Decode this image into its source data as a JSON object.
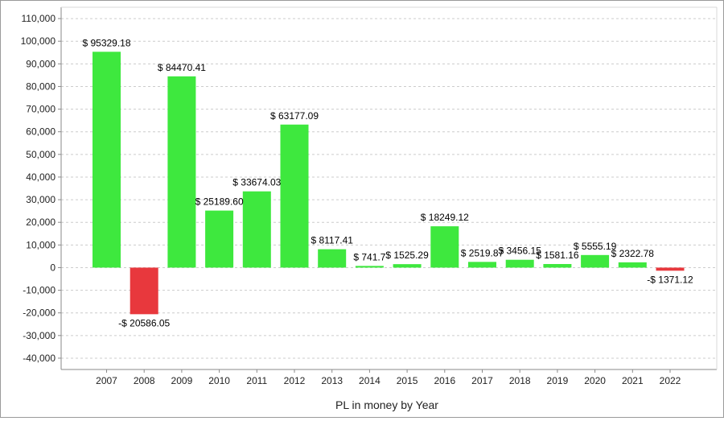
{
  "chart_data": {
    "type": "bar",
    "xlabel": "PL in money by Year",
    "ylabel": "",
    "ylim": [
      -45000,
      115000
    ],
    "yticks": [
      -40000,
      -30000,
      -20000,
      -10000,
      0,
      10000,
      20000,
      30000,
      40000,
      50000,
      60000,
      70000,
      80000,
      90000,
      100000,
      110000
    ],
    "ytick_labels": [
      "-40,000",
      "-30,000",
      "-20,000",
      "-10,000",
      "0",
      "10,000",
      "20,000",
      "30,000",
      "40,000",
      "50,000",
      "60,000",
      "70,000",
      "80,000",
      "90,000",
      "100,000",
      "110,000"
    ],
    "grid": "horizontal dashed",
    "categories": [
      "2007",
      "2008",
      "2009",
      "2010",
      "2011",
      "2012",
      "2013",
      "2014",
      "2015",
      "2016",
      "2017",
      "2018",
      "2019",
      "2020",
      "2021",
      "2022"
    ],
    "values": [
      95329.18,
      -20586.05,
      84470.41,
      25189.6,
      33674.03,
      63177.09,
      8117.41,
      741.7,
      1525.29,
      18249.12,
      2519.87,
      3456.15,
      1581.16,
      5555.19,
      2322.78,
      -1371.12
    ],
    "data_labels": [
      "$ 95329.18",
      "-$ 20586.05",
      "$ 84470.41",
      "$ 25189.60",
      "$ 33674.03",
      "$ 63177.09",
      "$ 8117.41",
      "$ 741.7",
      "$ 1525.29",
      "$ 18249.12",
      "$ 2519.87",
      "$ 3456.15",
      "$ 1581.16",
      "$ 5555.19",
      "$ 2322.78",
      "-$ 1371.12"
    ],
    "colors": {
      "positive": "#3ee83e",
      "negative": "#e8383d",
      "grid": "#cccccc",
      "axis": "#8a8a8a"
    }
  }
}
